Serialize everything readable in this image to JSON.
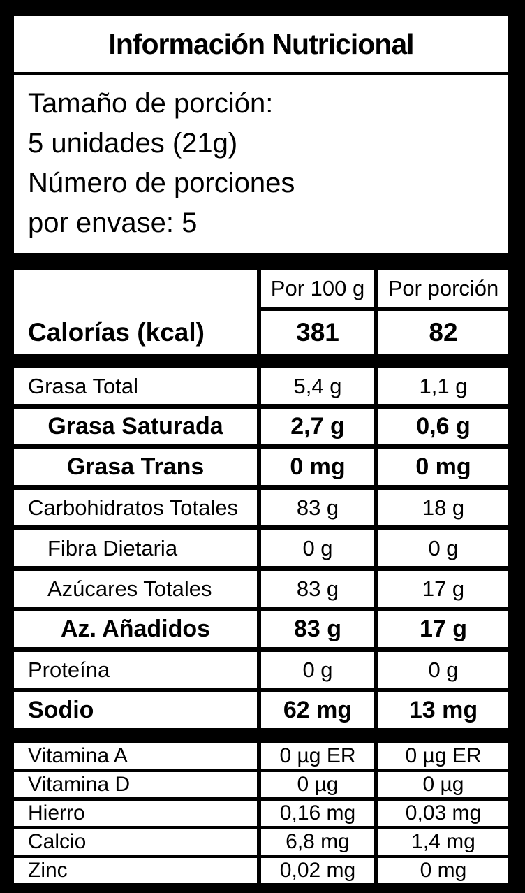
{
  "label": {
    "title": "Información Nutricional",
    "serving_lines": [
      "Tamaño de porción:",
      "5 unidades (21g)",
      "Número de porciones",
      "por envase: 5"
    ],
    "columns": {
      "per100": "Por 100 g",
      "per_serving": "Por porción"
    },
    "calories": {
      "name": "Calorías (kcal)",
      "per100": "381",
      "per_serving": "82"
    },
    "nutrients": [
      {
        "name": "Grasa Total",
        "per100": "5,4 g",
        "per_serving": "1,1 g",
        "style": "plain"
      },
      {
        "name": "Grasa Saturada",
        "per100": "2,7 g",
        "per_serving": "0,6 g",
        "style": "bold-center"
      },
      {
        "name": "Grasa Trans",
        "per100": "0 mg",
        "per_serving": "0 mg",
        "style": "bold-center"
      },
      {
        "name": "Carbohidratos Totales",
        "per100": "83 g",
        "per_serving": "18 g",
        "style": "plain"
      },
      {
        "name": "Fibra Dietaria",
        "per100": "0 g",
        "per_serving": "0 g",
        "style": "indent"
      },
      {
        "name": "Azúcares Totales",
        "per100": "83 g",
        "per_serving": "17 g",
        "style": "indent"
      },
      {
        "name": "Az. Añadidos",
        "per100": "83 g",
        "per_serving": "17 g",
        "style": "bold-center"
      },
      {
        "name": "Proteína",
        "per100": "0 g",
        "per_serving": "0 g",
        "style": "plain"
      },
      {
        "name": "Sodio",
        "per100": "62 mg",
        "per_serving": "13 mg",
        "style": "bold-left"
      }
    ],
    "micronutrients": [
      {
        "name": "Vitamina A",
        "per100": "0 µg ER",
        "per_serving": "0 µg ER"
      },
      {
        "name": "Vitamina D",
        "per100": "0 µg",
        "per_serving": "0 µg"
      },
      {
        "name": "Hierro",
        "per100": "0,16 mg",
        "per_serving": "0,03 mg"
      },
      {
        "name": "Calcio",
        "per100": "6,8 mg",
        "per_serving": "1,4 mg"
      },
      {
        "name": "Zinc",
        "per100": "0,02 mg",
        "per_serving": "0 mg"
      }
    ],
    "colors": {
      "background": "#000000",
      "panel": "#ffffff",
      "text": "#000000"
    }
  }
}
